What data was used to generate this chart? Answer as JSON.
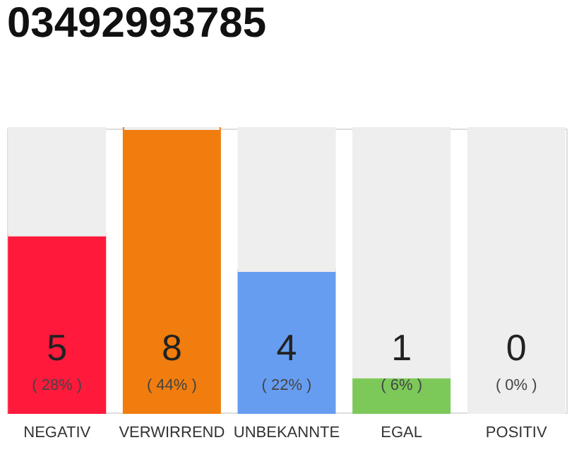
{
  "chart_data": {
    "type": "bar",
    "title": "03492993785",
    "categories": [
      "NEGATIV",
      "VERWIRREND",
      "UNBEKANNTE",
      "EGAL",
      "POSITIV"
    ],
    "stacked": true,
    "series": [
      {
        "values": [
          5,
          8,
          4,
          1,
          0
        ],
        "colors": [
          "#ff1a3c",
          "#f07d0e",
          "#679df0",
          "#7cc95a",
          "#22aa44"
        ],
        "value_labels": [
          "5",
          "8",
          "4",
          "1",
          "0"
        ]
      },
      {
        "values": [
          3,
          0,
          4,
          7,
          8
        ],
        "color": "#eeeeee"
      }
    ],
    "ylim": [
      0,
      8
    ],
    "tick_labels": "x",
    "grid": false,
    "annotations": [
      "( 28% )",
      "( 44% )",
      "( 22% )",
      "( 6% )",
      "( 0% )"
    ]
  }
}
